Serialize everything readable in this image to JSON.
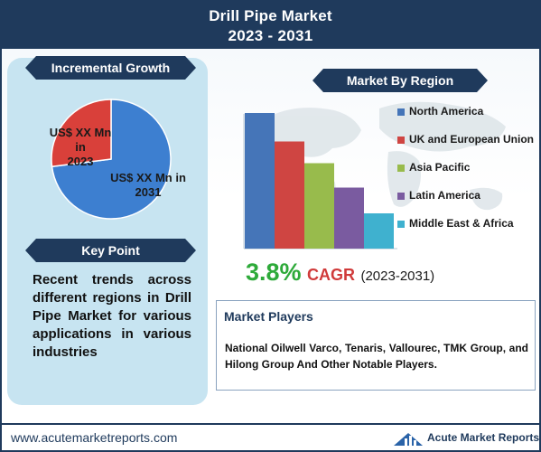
{
  "header": {
    "title_line1": "Drill Pipe Market",
    "title_line2": "2023 - 2031"
  },
  "incremental_growth": {
    "ribbon": "Incremental Growth",
    "label_2023": "US$ XX Mn in 2023",
    "label_2023_l1": "US$ XX Mn in",
    "label_2023_l2": "2023",
    "label_2031_l1": "US$ XX Mn in",
    "label_2031_l2": "2031",
    "colors": {
      "y2023": "#d9403a",
      "y2031": "#3d7fd0"
    }
  },
  "key_point": {
    "ribbon": "Key Point",
    "text": "Recent trends across different regions in Drill Pipe Market for various applications in various industries"
  },
  "region": {
    "ribbon": "Market By Region"
  },
  "chart_data": [
    {
      "type": "pie",
      "slices": [
        {
          "label": "US$ XX Mn in 2023",
          "value": 27,
          "color": "#d9403a"
        },
        {
          "label": "US$ XX Mn in 2031",
          "value": 73,
          "color": "#3d7fd0"
        }
      ]
    },
    {
      "type": "bar",
      "categories": [
        "North America",
        "UK and European Union",
        "Asia Pacific",
        "Latin America",
        "Middle East & Africa"
      ],
      "values": [
        100,
        79,
        63,
        45,
        26
      ],
      "colors": [
        "#4575b8",
        "#cf4542",
        "#98bb4c",
        "#7a5ba0",
        "#3fb1cf"
      ],
      "legend": "right",
      "grid": false
    }
  ],
  "cagr": {
    "value": "3.8%",
    "label": "CAGR",
    "period": "(2023-2031)"
  },
  "market_players": {
    "heading": "Market Players",
    "text": "National Oilwell Varco, Tenaris, Vallourec, TMK Group, and Hilong Group And Other Notable Players."
  },
  "footer": {
    "website": "www.acutemarketreports.com",
    "logo_text": "Acute Market Reports",
    "logo_icon": "bar-chart-logo-icon"
  }
}
